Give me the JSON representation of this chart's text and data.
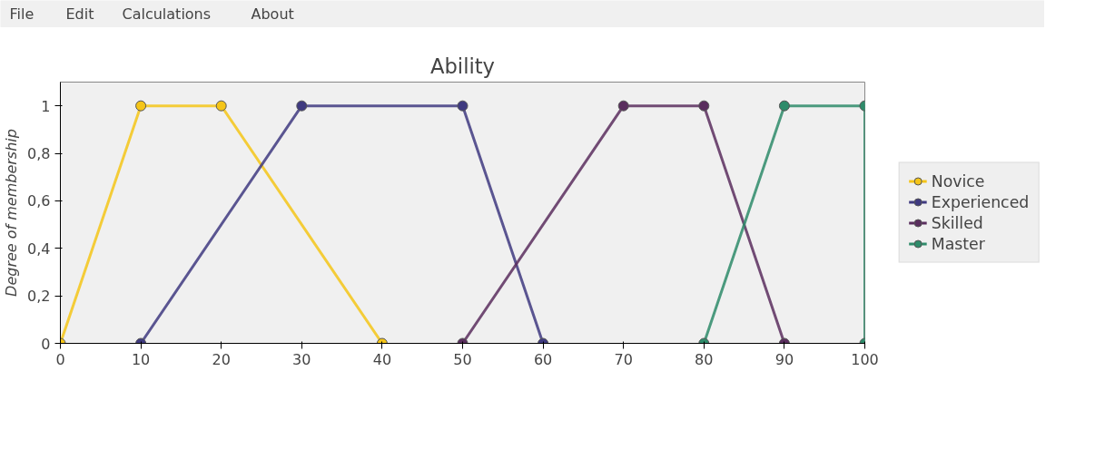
{
  "chart_data": {
    "type": "line",
    "title": "Ability",
    "ylabel": "Degree of membership",
    "annotations": [
      "File",
      "Edit",
      "Calculations",
      "About"
    ],
    "series": [
      {
        "name": "Novice",
        "color": "#f5c518",
        "x": [
          0,
          10,
          20,
          40
        ],
        "values": [
          0,
          1,
          1,
          0
        ]
      },
      {
        "name": "Experienced",
        "color": "#3f3a80",
        "x": [
          10,
          30,
          50,
          60
        ],
        "values": [
          0,
          1,
          1,
          0
        ]
      },
      {
        "name": "Skilled",
        "color": "#5a2e5e",
        "x": [
          50,
          70,
          80,
          90
        ],
        "values": [
          0,
          1,
          1,
          0
        ]
      },
      {
        "name": "Master",
        "color": "#2e8b6a",
        "x": [
          80,
          90,
          100,
          100
        ],
        "values": [
          0,
          1,
          1,
          0
        ]
      }
    ],
    "xlim": [
      0,
      100
    ],
    "xticks": [
      0,
      10,
      20,
      30,
      40,
      50,
      60,
      70,
      80,
      90,
      100
    ],
    "ylim": [
      0,
      1.1
    ],
    "yticks": [
      0,
      {
        "value": 0.2,
        "label": "0,2"
      },
      {
        "value": 0.4,
        "label": "0,4"
      },
      {
        "value": 0.6,
        "label": "0,6"
      },
      {
        "value": 0.8,
        "label": "0,8"
      },
      1
    ],
    "grid": false,
    "legend": "right",
    "marker": "circle",
    "line_style": "solid"
  }
}
